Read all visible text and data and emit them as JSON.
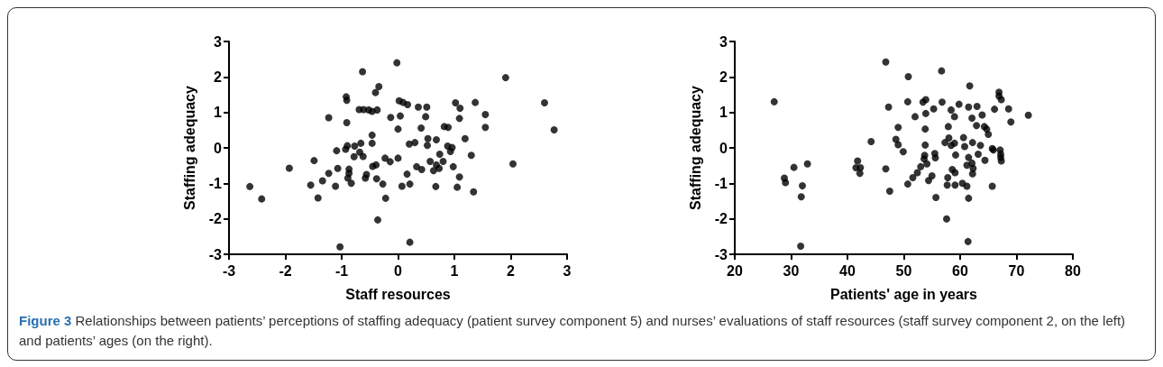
{
  "chart_data": [
    {
      "type": "scatter",
      "xlabel": "Staff resources",
      "ylabel": "Staffing adequacy",
      "color": "#000000",
      "marker": "circle",
      "grid": false,
      "xlim": [
        -3,
        3
      ],
      "xticks": [
        -3,
        -2,
        -1,
        0,
        1,
        2,
        3
      ],
      "ylim": [
        -3,
        3
      ],
      "yticks": [
        -3,
        -2,
        -1,
        0,
        1,
        2,
        3
      ],
      "x": [
        -2.63,
        -2.42,
        -1.93,
        -1.49,
        -1.55,
        -1.42,
        -1.34,
        -1.23,
        -1.23,
        -1.09,
        -1.07,
        -1.11,
        -1.03,
        -0.92,
        -0.91,
        -0.91,
        -0.93,
        -0.9,
        -0.87,
        -0.87,
        -0.89,
        -0.83,
        -0.78,
        -0.77,
        -0.66,
        -0.68,
        -0.62,
        -0.63,
        -0.69,
        -0.61,
        -0.52,
        -0.46,
        -0.37,
        -0.4,
        -0.34,
        -0.46,
        -0.46,
        -0.58,
        -0.56,
        -0.45,
        -0.39,
        -0.38,
        -0.36,
        -0.27,
        -0.23,
        -0.22,
        -0.14,
        -0.13,
        -0.02,
        0.02,
        0.09,
        0.17,
        0.04,
        0.0,
        0.0,
        0.07,
        0.16,
        0.21,
        0.21,
        0.2,
        0.3,
        0.33,
        0.42,
        0.36,
        0.51,
        0.49,
        0.41,
        0.53,
        0.52,
        0.68,
        0.57,
        0.63,
        0.67,
        0.68,
        0.73,
        0.74,
        0.8,
        0.82,
        0.89,
        0.88,
        0.96,
        0.93,
        0.98,
        1.09,
        1.05,
        1.02,
        1.1,
        1.09,
        1.19,
        1.3,
        1.34,
        1.37,
        1.55,
        1.55,
        1.91,
        2.04,
        2.6,
        2.77
      ],
      "values": [
        -1.09,
        -1.44,
        -0.57,
        -0.36,
        -1.05,
        -1.41,
        -0.93,
        0.85,
        -0.72,
        -0.08,
        -0.58,
        -1.08,
        -2.79,
        1.44,
        1.34,
        0.71,
        -0.04,
        0.06,
        -0.6,
        -0.72,
        -0.85,
        -1.0,
        -0.25,
        0.05,
        0.13,
        -0.12,
        -0.24,
        2.15,
        1.08,
        1.08,
        1.07,
        1.03,
        1.07,
        1.56,
        1.73,
        0.36,
        0.13,
        -0.85,
        -0.75,
        -0.52,
        -0.48,
        -0.87,
        -2.03,
        -1.02,
        -0.29,
        -1.42,
        -0.39,
        0.86,
        2.4,
        1.33,
        1.28,
        1.22,
        0.9,
        0.53,
        -0.29,
        -1.08,
        -0.74,
        -1.02,
        -2.66,
        0.11,
        0.15,
        -0.53,
        -0.61,
        1.15,
        1.15,
        0.88,
        0.56,
        0.26,
        0.07,
        0.23,
        -0.38,
        -0.64,
        -1.09,
        -0.48,
        -0.58,
        -0.18,
        -0.38,
        0.6,
        0.58,
        0.05,
        0.01,
        -0.1,
        -0.53,
        -0.82,
        -1.11,
        1.27,
        1.12,
        0.83,
        0.26,
        -0.21,
        -1.24,
        1.28,
        0.94,
        0.58,
        1.98,
        -0.45,
        1.27,
        0.51
      ],
      "annotations": [
        "Figure 3 Relationships between patients’ perceptions of staffing adequacy (patient survey component 5) and nurses’ evaluations of staff resources (staff survey component 2, on the left) and patients’ ages (on the right)."
      ]
    },
    {
      "type": "scatter",
      "xlabel": "Patients' age in years",
      "ylabel": "Staffing adequacy",
      "color": "#000000",
      "marker": "circle",
      "grid": false,
      "xlim": [
        20,
        80
      ],
      "xticks": [
        20,
        30,
        40,
        50,
        60,
        70,
        80
      ],
      "ylim": [
        -3,
        3
      ],
      "yticks": [
        -3,
        -2,
        -1,
        0,
        1,
        2,
        3
      ],
      "x": [
        27,
        28.8,
        29,
        30.5,
        31.7,
        31.8,
        32.0,
        32.9,
        41.8,
        41.5,
        42.3,
        42.2,
        44.2,
        46.8,
        47.3,
        46.8,
        47.5,
        49.0,
        48.6,
        49.0,
        49.9,
        50.8,
        50.7,
        50.7,
        51.6,
        52.0,
        52.4,
        53.0,
        53.4,
        53.9,
        53.9,
        53.8,
        53.8,
        53.7,
        53.6,
        54.1,
        54.4,
        55.0,
        55.3,
        55.5,
        55.6,
        55.7,
        56.7,
        56.8,
        57.6,
        57.3,
        57.9,
        58.0,
        58.4,
        59.0,
        58.4,
        59.0,
        59.8,
        59.2,
        58.6,
        59.1,
        57.8,
        57.7,
        59.1,
        60.4,
        60.6,
        60.8,
        61.2,
        61.7,
        61.5,
        63.0,
        62.1,
        63.9,
        62.9,
        64.3,
        64.7,
        65.0,
        62.2,
        63.6,
        61.5,
        63.2,
        64.4,
        61.2,
        62.1,
        62.3,
        62.2,
        65.7,
        65.9,
        67.1,
        67.2,
        67.2,
        67.3,
        65.7,
        61.5,
        61.4,
        66.9,
        66.9,
        67.3,
        66.1,
        68.6,
        69.0,
        72.1
      ],
      "values": [
        1.3,
        -0.85,
        -0.98,
        -0.55,
        -2.77,
        -1.38,
        -1.07,
        -0.45,
        -0.37,
        -0.56,
        -0.56,
        -0.72,
        0.18,
        2.42,
        1.15,
        -0.59,
        -1.22,
        0.58,
        0.24,
        0.09,
        -0.11,
        2.01,
        1.3,
        -1.02,
        -0.84,
        0.88,
        -0.7,
        -0.53,
        1.29,
        1.36,
        0.97,
        0.53,
        0.08,
        -0.21,
        -0.31,
        -0.45,
        -0.92,
        -0.79,
        1.1,
        -0.16,
        -0.28,
        -1.4,
        2.17,
        1.29,
        -2.0,
        0.15,
        0.6,
        0.28,
        0.07,
        0.13,
        1.07,
        0.88,
        1.23,
        -0.2,
        -0.61,
        -0.7,
        -0.84,
        -1.05,
        -1.05,
        -1.0,
        0.29,
        0.04,
        -1.08,
        1.75,
        1.15,
        1.17,
        0.84,
        0.93,
        0.63,
        0.6,
        0.53,
        0.38,
        0.15,
        0.07,
        -0.27,
        -0.18,
        -0.35,
        -0.49,
        -0.43,
        -0.58,
        -0.73,
        -0.02,
        -0.06,
        -0.06,
        -0.18,
        -0.27,
        -0.37,
        -1.08,
        -1.42,
        -2.64,
        1.57,
        1.46,
        1.36,
        1.09,
        1.1,
        0.73,
        0.92
      ]
    }
  ]
}
